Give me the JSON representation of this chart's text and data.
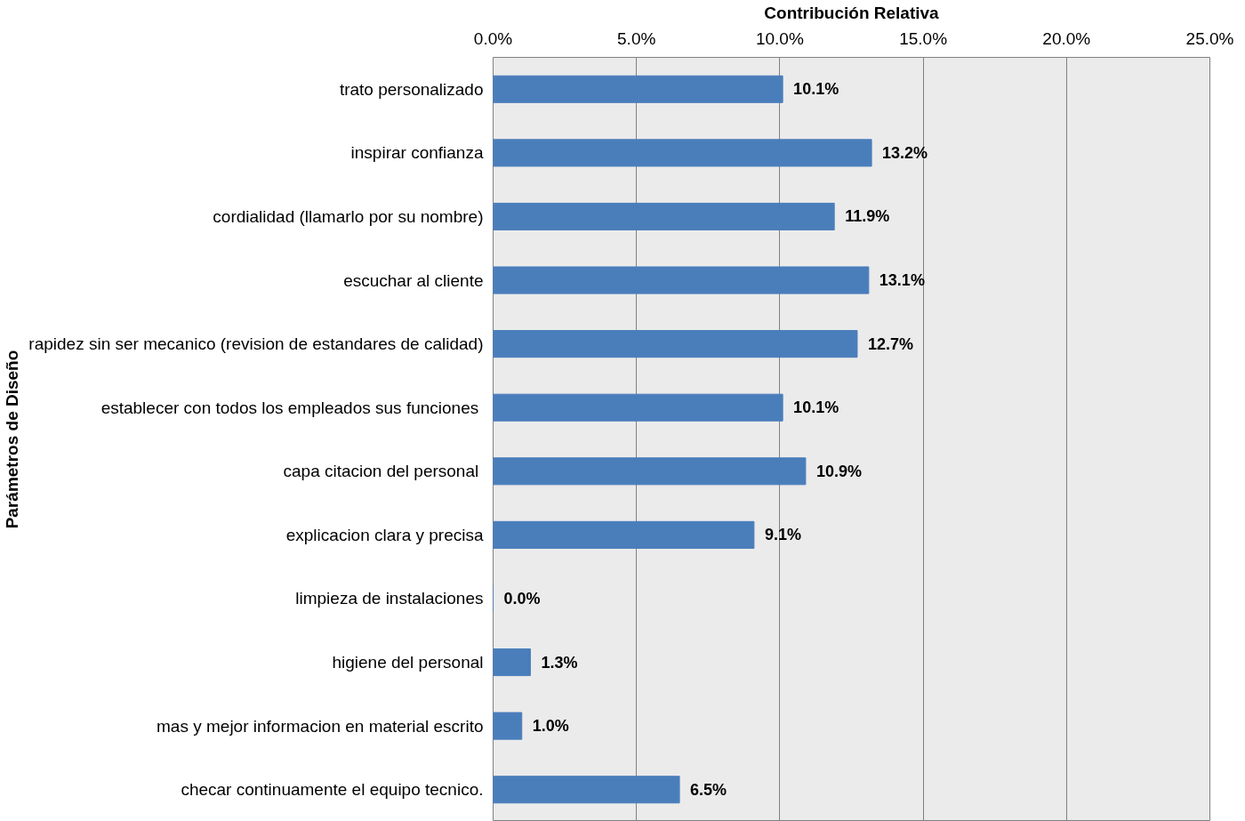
{
  "chart_data": {
    "type": "bar",
    "orientation": "horizontal",
    "xlabel": "Contribución Relativa",
    "ylabel": "Parámetros de Diseño",
    "categories": [
      "trato personalizado",
      "inspirar confianza",
      "cordialidad (llamarlo por su nombre)",
      "escuchar al cliente",
      "rapidez sin ser mecanico (revision de estandares de calidad)",
      "establecer  con todos los empleados sus funciones",
      "capa  citacion del personal",
      "explicacion clara y precisa",
      "limpieza de instalaciones",
      "higiene del personal",
      "mas y mejor informacion en material escrito",
      "checar continuamente el equipo tecnico."
    ],
    "values": [
      10.1,
      13.2,
      11.9,
      13.1,
      12.7,
      10.1,
      10.9,
      9.1,
      0.0,
      1.3,
      1.0,
      6.5
    ],
    "value_labels": [
      "10.1%",
      "13.2%",
      "11.9%",
      "13.1%",
      "12.7%",
      "10.1%",
      "10.9%",
      "9.1%",
      "0.0%",
      "1.3%",
      "1.0%",
      "6.5%"
    ],
    "color": "#4a7ebb",
    "xlim": [
      0,
      25
    ],
    "xticks": [
      {
        "value": 0,
        "label": "0.0%"
      },
      {
        "value": 5,
        "label": "5.0%"
      },
      {
        "value": 10,
        "label": "10.0%"
      },
      {
        "value": 15,
        "label": "15.0%"
      },
      {
        "value": 20,
        "label": "20.0%"
      },
      {
        "value": 25,
        "label": "25.0%"
      }
    ],
    "grid": "x"
  }
}
